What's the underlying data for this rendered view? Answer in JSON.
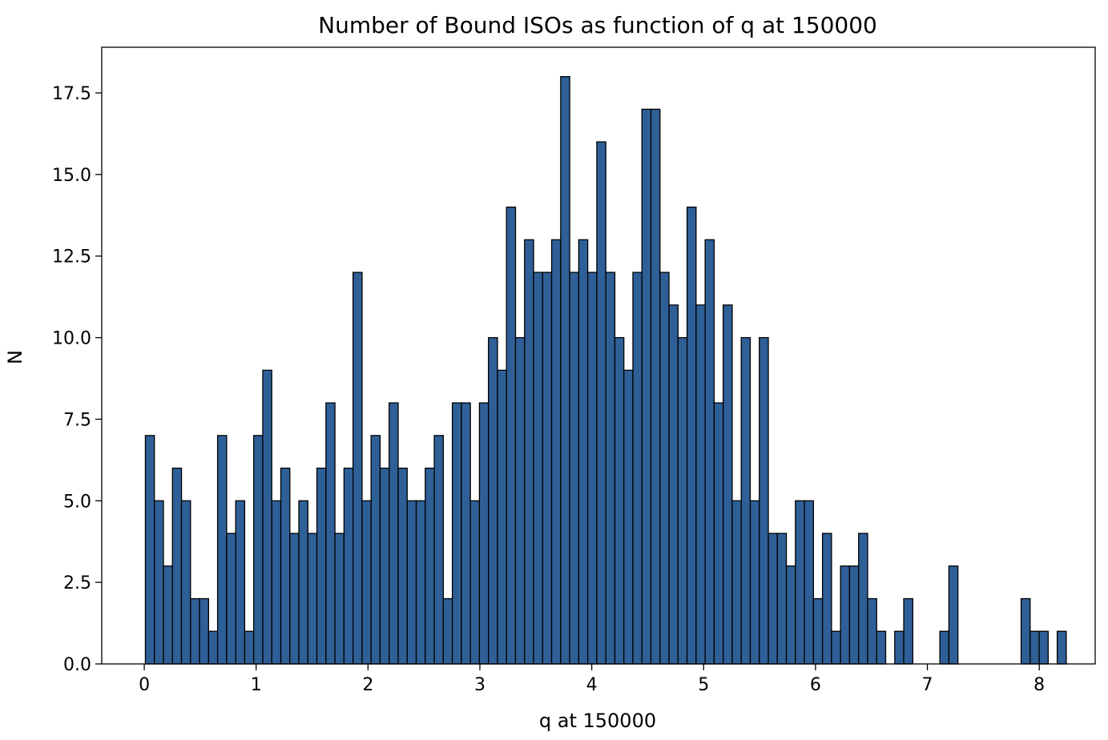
{
  "chart_data": {
    "type": "bar",
    "title": "Number of Bound ISOs as function of q at 150000",
    "xlabel": "q at 150000",
    "ylabel": "N",
    "bar_color": "#2f5f97",
    "edge_color": "#000000",
    "grid": false,
    "legend": "none",
    "xlim": [
      -0.38,
      8.5
    ],
    "ylim": [
      0,
      18.9
    ],
    "bin_start": 0.01,
    "bin_width": 0.0807,
    "x_ticks": [
      0,
      1,
      2,
      3,
      4,
      5,
      6,
      7,
      8
    ],
    "y_ticks": [
      0.0,
      2.5,
      5.0,
      7.5,
      10.0,
      12.5,
      15.0,
      17.5
    ],
    "x_tick_labels": [
      "0",
      "1",
      "2",
      "3",
      "4",
      "5",
      "6",
      "7",
      "8"
    ],
    "y_tick_labels": [
      "0.0",
      "2.5",
      "5.0",
      "7.5",
      "10.0",
      "12.5",
      "15.0",
      "17.5"
    ],
    "values": [
      7,
      5,
      3,
      6,
      5,
      2,
      2,
      1,
      7,
      4,
      5,
      1,
      7,
      9,
      5,
      6,
      4,
      5,
      4,
      6,
      8,
      4,
      6,
      12,
      5,
      7,
      6,
      8,
      6,
      5,
      5,
      6,
      7,
      2,
      8,
      8,
      5,
      8,
      10,
      9,
      14,
      10,
      13,
      12,
      12,
      13,
      18,
      12,
      13,
      12,
      16,
      12,
      10,
      9,
      12,
      17,
      17,
      12,
      11,
      10,
      14,
      11,
      13,
      8,
      11,
      5,
      10,
      5,
      10,
      4,
      4,
      3,
      5,
      5,
      2,
      4,
      1,
      3,
      3,
      4,
      2,
      1,
      0,
      1,
      2,
      0,
      0,
      0,
      1,
      3,
      0,
      0,
      0,
      0,
      0,
      0,
      0,
      2,
      1,
      1,
      0,
      1
    ]
  }
}
